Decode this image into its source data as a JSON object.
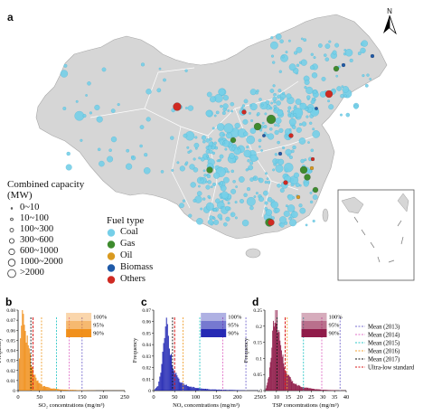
{
  "panel_a": {
    "letter": "a",
    "north_label": "N",
    "capacity_legend": {
      "title_line1": "Combined capacity",
      "title_line2": "(MW)",
      "items": [
        "0~10",
        "10~100",
        "100~300",
        "300~600",
        "600~1000",
        "1000~2000",
        ">2000"
      ]
    },
    "fuel_legend": {
      "title": "Fuel type",
      "items": [
        {
          "label": "Coal",
          "color": "#76cfe8"
        },
        {
          "label": "Gas",
          "color": "#3e8b2e"
        },
        {
          "label": "Oil",
          "color": "#d99a20"
        },
        {
          "label": "Biomass",
          "color": "#1f5aa8"
        },
        {
          "label": "Others",
          "color": "#cf2a22"
        }
      ]
    }
  },
  "panels": [
    {
      "letter": "b",
      "ylabel": "Frequency",
      "xlabel": "SO₂ concentrations (mg/m³)",
      "color": "#f08a10",
      "xticks": [
        "0",
        "50",
        "100",
        "150",
        "200",
        "250"
      ],
      "yticks": [
        "0",
        "0.01",
        "0.02",
        "0.03",
        "0.04",
        "0.05",
        "0.06",
        "0.07",
        "0.08"
      ],
      "inset": [
        "100%",
        "95%",
        "90%"
      ]
    },
    {
      "letter": "c",
      "ylabel": "Frequency",
      "xlabel": "NOₓ concentrations (mg/m³)",
      "color": "#1a1fb0",
      "xticks": [
        "0",
        "50",
        "100",
        "150",
        "200",
        "250"
      ],
      "yticks": [
        "0",
        "0.01",
        "0.02",
        "0.03",
        "0.04",
        "0.05",
        "0.06",
        "0.07"
      ],
      "inset": [
        "100%",
        "95%",
        "90%"
      ]
    },
    {
      "letter": "d",
      "ylabel": "Frequency",
      "xlabel": "TSP concentrations (mg/m³)",
      "color": "#8a1040",
      "xticks": [
        "5",
        "10",
        "15",
        "20",
        "25",
        "30",
        "35",
        "40"
      ],
      "yticks": [
        "0",
        "0.05",
        "0.1",
        "0.15",
        "0.2",
        "0.25"
      ],
      "inset": [
        "100%",
        "95%",
        "90%"
      ]
    }
  ],
  "mean_legend": [
    {
      "label": "Mean (2013)",
      "color": "#7a6fd0"
    },
    {
      "label": "Mean (2014)",
      "color": "#e070c8"
    },
    {
      "label": "Mean (2015)",
      "color": "#30c8c8"
    },
    {
      "label": "Mean (2016)",
      "color": "#f0a030"
    },
    {
      "label": "Mean (2017)",
      "color": "#111111"
    },
    {
      "label": "Ultra-low standard",
      "color": "#d81a1a"
    }
  ],
  "chart_data": [
    {
      "type": "bar",
      "title": "",
      "xlabel": "SO₂ concentrations (mg/m³)",
      "ylabel": "Frequency",
      "xlim": [
        0,
        250
      ],
      "ylim": [
        0,
        0.08
      ],
      "x": [
        2,
        6,
        10,
        14,
        18,
        22,
        26,
        30,
        34,
        38,
        42,
        46,
        50,
        55,
        60,
        70,
        80,
        90,
        100,
        120,
        140,
        160,
        180
      ],
      "values": [
        0.03,
        0.06,
        0.08,
        0.07,
        0.055,
        0.045,
        0.035,
        0.028,
        0.02,
        0.015,
        0.011,
        0.009,
        0.007,
        0.005,
        0.004,
        0.003,
        0.002,
        0.0015,
        0.001,
        0.0008,
        0.0005,
        0.0003,
        0.0002
      ],
      "means": {
        "2013": 150,
        "2014": 120,
        "2015": 90,
        "2016": 55,
        "2017": 30
      },
      "ultra_low_standard": 35
    },
    {
      "type": "bar",
      "title": "",
      "xlabel": "NOₓ concentrations (mg/m³)",
      "ylabel": "Frequency",
      "xlim": [
        0,
        250
      ],
      "ylim": [
        0,
        0.07
      ],
      "x": [
        10,
        15,
        20,
        25,
        30,
        35,
        40,
        45,
        50,
        55,
        60,
        70,
        80,
        90,
        100,
        120,
        140,
        160,
        180,
        200,
        220
      ],
      "values": [
        0.005,
        0.015,
        0.03,
        0.05,
        0.06,
        0.045,
        0.03,
        0.022,
        0.016,
        0.012,
        0.009,
        0.006,
        0.004,
        0.003,
        0.0025,
        0.0015,
        0.001,
        0.0008,
        0.0006,
        0.0004,
        0.0002
      ],
      "means": {
        "2013": 220,
        "2014": 165,
        "2015": 110,
        "2016": 70,
        "2017": 45
      },
      "ultra_low_standard": 50
    },
    {
      "type": "bar",
      "title": "",
      "xlabel": "TSP concentrations (mg/m³)",
      "ylabel": "Frequency",
      "xlim": [
        0,
        40
      ],
      "ylim": [
        0,
        0.25
      ],
      "x": [
        1,
        2,
        3,
        4,
        5,
        6,
        7,
        8,
        9,
        10,
        11,
        12,
        13,
        14,
        15,
        17,
        19,
        21,
        23,
        25,
        30,
        35
      ],
      "values": [
        0.02,
        0.05,
        0.12,
        0.2,
        0.25,
        0.22,
        0.17,
        0.12,
        0.09,
        0.07,
        0.05,
        0.04,
        0.03,
        0.025,
        0.02,
        0.015,
        0.01,
        0.008,
        0.006,
        0.004,
        0.002,
        0.001
      ],
      "means": {
        "2013": 37,
        "2014": 28,
        "2015": 19,
        "2016": 11,
        "2017": 6
      },
      "ultra_low_standard": 10
    }
  ]
}
